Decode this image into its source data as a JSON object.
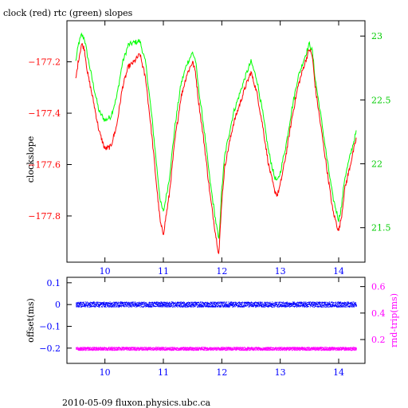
{
  "colors": {
    "clock": "#ff0000",
    "rtc": "#00ff00",
    "offset": "#0000ff",
    "rtt": "#ff00ff",
    "axis": "#000000"
  },
  "footer": "2010-05-09 fluxon.physics.ubc.ca",
  "chart_data": [
    {
      "type": "line",
      "title": "clock (red) rtc (green) slopes",
      "ylabel": "clockslope",
      "y2label": "",
      "xlim": [
        9.35,
        14.45
      ],
      "ylim": [
        -177.98,
        -177.04
      ],
      "y2lim": [
        21.23,
        23.12
      ],
      "xticks": [
        10,
        11,
        12,
        13,
        14
      ],
      "yticks": [
        -177.2,
        -177.4,
        -177.6,
        -177.8
      ],
      "y2ticks": [
        23,
        22.5,
        22,
        21.5
      ],
      "series": [
        {
          "name": "clock",
          "axis": "left",
          "x": [
            9.5,
            9.55,
            9.6,
            9.65,
            9.7,
            9.8,
            9.9,
            10.0,
            10.1,
            10.2,
            10.3,
            10.4,
            10.5,
            10.6,
            10.7,
            10.8,
            10.9,
            10.95,
            11.0,
            11.1,
            11.2,
            11.3,
            11.4,
            11.5,
            11.55,
            11.6,
            11.7,
            11.8,
            11.9,
            11.95,
            12.0,
            12.05,
            12.1,
            12.2,
            12.3,
            12.4,
            12.5,
            12.6,
            12.7,
            12.8,
            12.9,
            12.95,
            13.0,
            13.1,
            13.2,
            13.3,
            13.4,
            13.5,
            13.55,
            13.6,
            13.7,
            13.8,
            13.9,
            14.0,
            14.05,
            14.1,
            14.2,
            14.3
          ],
          "y": [
            -177.27,
            -177.19,
            -177.13,
            -177.15,
            -177.24,
            -177.35,
            -177.47,
            -177.54,
            -177.53,
            -177.45,
            -177.3,
            -177.22,
            -177.2,
            -177.17,
            -177.27,
            -177.48,
            -177.72,
            -177.83,
            -177.87,
            -177.72,
            -177.5,
            -177.34,
            -177.25,
            -177.2,
            -177.24,
            -177.35,
            -177.52,
            -177.72,
            -177.88,
            -177.95,
            -177.74,
            -177.61,
            -177.55,
            -177.44,
            -177.37,
            -177.3,
            -177.24,
            -177.32,
            -177.45,
            -177.6,
            -177.7,
            -177.72,
            -177.68,
            -177.56,
            -177.42,
            -177.3,
            -177.22,
            -177.15,
            -177.18,
            -177.3,
            -177.46,
            -177.62,
            -177.78,
            -177.86,
            -177.8,
            -177.7,
            -177.6,
            -177.5
          ]
        },
        {
          "name": "rtc",
          "axis": "right",
          "x": [
            9.5,
            9.55,
            9.6,
            9.65,
            9.7,
            9.8,
            9.9,
            10.0,
            10.1,
            10.2,
            10.3,
            10.4,
            10.5,
            10.6,
            10.7,
            10.8,
            10.9,
            10.95,
            11.0,
            11.1,
            11.2,
            11.3,
            11.4,
            11.5,
            11.55,
            11.6,
            11.7,
            11.8,
            11.9,
            11.95,
            12.0,
            12.05,
            12.1,
            12.2,
            12.3,
            12.4,
            12.5,
            12.6,
            12.7,
            12.8,
            12.9,
            12.95,
            13.0,
            13.1,
            13.2,
            13.3,
            13.4,
            13.5,
            13.55,
            13.6,
            13.7,
            13.8,
            13.9,
            14.0,
            14.05,
            14.1,
            14.2,
            14.3
          ],
          "y": [
            22.8,
            22.94,
            23.01,
            22.98,
            22.85,
            22.62,
            22.41,
            22.34,
            22.37,
            22.52,
            22.79,
            22.93,
            22.95,
            22.96,
            22.78,
            22.38,
            21.92,
            21.7,
            21.62,
            21.88,
            22.3,
            22.62,
            22.78,
            22.87,
            22.81,
            22.6,
            22.26,
            21.86,
            21.54,
            21.4,
            21.8,
            22.06,
            22.18,
            22.4,
            22.54,
            22.68,
            22.8,
            22.66,
            22.4,
            22.1,
            21.9,
            21.86,
            21.93,
            22.15,
            22.43,
            22.67,
            22.81,
            22.94,
            22.88,
            22.66,
            22.36,
            22.04,
            21.74,
            21.56,
            21.67,
            21.88,
            22.07,
            22.25
          ]
        }
      ]
    },
    {
      "type": "scatter",
      "title": "",
      "ylabel": "offset(ms)",
      "y2label": "rnd-trip(ms)",
      "xlim": [
        9.35,
        14.45
      ],
      "ylim": [
        -0.27,
        0.125
      ],
      "y2lim": [
        0.02,
        0.67
      ],
      "xticks": [
        10,
        11,
        12,
        13,
        14
      ],
      "yticks": [
        0.1,
        0,
        -0.1,
        -0.2
      ],
      "y2ticks": [
        0.6,
        0.4,
        0.2
      ],
      "series": [
        {
          "name": "offset",
          "axis": "left",
          "x_range": [
            9.5,
            14.3
          ],
          "mean": 0.0,
          "spread": 0.012
        },
        {
          "name": "rnd-trip",
          "axis": "right",
          "x_range": [
            9.5,
            14.3
          ],
          "mean": 0.13,
          "spread": 0.012
        }
      ]
    }
  ]
}
